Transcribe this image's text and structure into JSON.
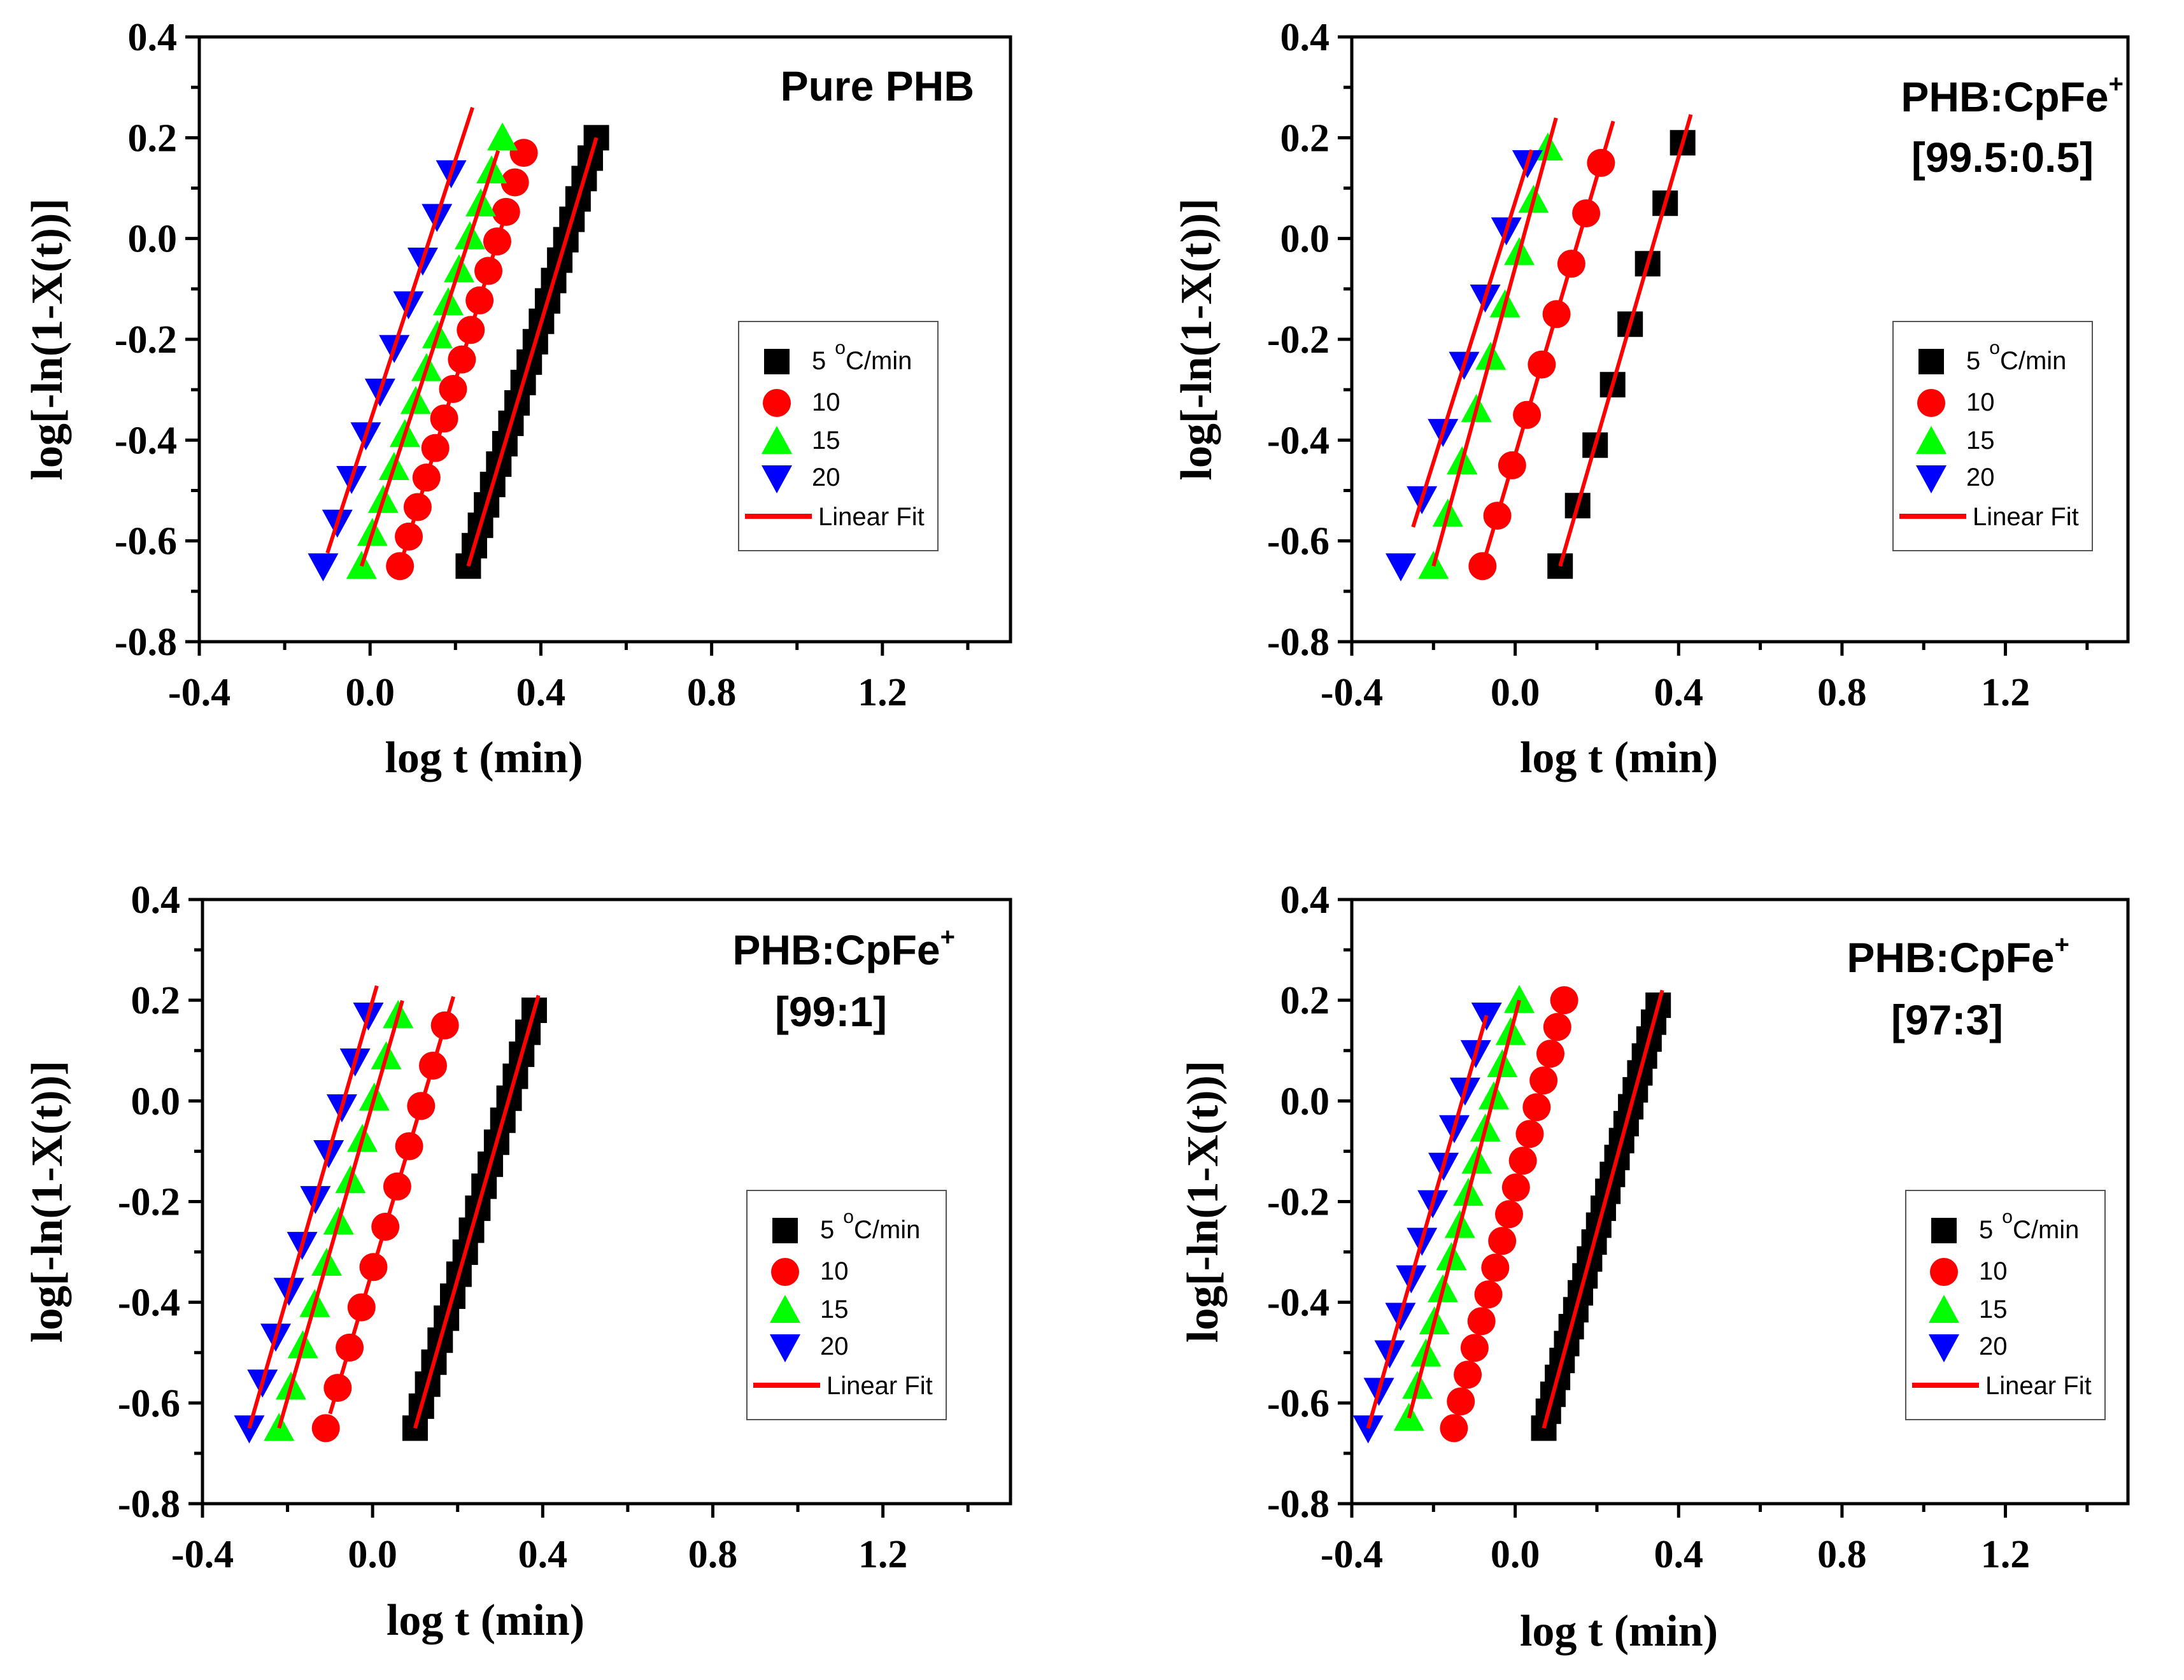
{
  "colors": {
    "black": "#000000",
    "red": "#ff0000",
    "green": "#00ff00",
    "blue": "#0000ff",
    "fit": "#ff0000"
  },
  "chart_data": [
    {
      "type": "scatter",
      "title": "Pure PHB",
      "title_line2": "",
      "xlabel": "log t (min)",
      "ylabel": "log[-ln(1-X(t))]",
      "xlim": [
        -0.4,
        1.5
      ],
      "ylim": [
        -0.8,
        0.4
      ],
      "xticks": [
        "-0.4",
        "0.0",
        "0.4",
        "0.8",
        "1.2"
      ],
      "yticks": [
        "-0.8",
        "-0.6",
        "-0.4",
        "-0.2",
        "0.0",
        "0.2",
        "0.4"
      ],
      "legend": {
        "superscript": "o",
        "labels": [
          "5",
          "10",
          "15",
          "20"
        ],
        "unit_suffix": "C/min",
        "fit_label": "Linear Fit"
      },
      "series": [
        {
          "name": "5 oC/min",
          "marker": "square",
          "color": "black",
          "x0": 0.23,
          "x1": 0.53,
          "y0": -0.65,
          "y1": 0.2,
          "n": 22,
          "fit": [
            0.23,
            0.53
          ]
        },
        {
          "name": "10",
          "marker": "circle",
          "color": "red",
          "x0": 0.07,
          "x1": 0.36,
          "y0": -0.65,
          "y1": 0.17,
          "n": 15,
          "fit": [
            0.07,
            0.32
          ]
        },
        {
          "name": "15",
          "marker": "triangle",
          "color": "green",
          "x0": -0.02,
          "x1": 0.31,
          "y0": -0.65,
          "y1": 0.2,
          "n": 14,
          "fit": [
            -0.02,
            0.3
          ]
        },
        {
          "name": "20",
          "marker": "down-triangle",
          "color": "blue",
          "x0": -0.11,
          "x1": 0.19,
          "y0": -0.65,
          "y1": 0.13,
          "n": 10,
          "fit": [
            -0.1,
            0.24
          ]
        }
      ]
    },
    {
      "type": "scatter",
      "title": "PHB:CpFe",
      "title_sup": "+",
      "title_line2": "[99.5:0.5]",
      "xlabel": "log t (min)",
      "ylabel": "log[-ln(1-X(t))]",
      "xlim": [
        -0.4,
        1.5
      ],
      "ylim": [
        -0.8,
        0.4
      ],
      "xticks": [
        "-0.4",
        "0.0",
        "0.4",
        "0.8",
        "1.2"
      ],
      "yticks": [
        "-0.8",
        "-0.6",
        "-0.4",
        "-0.2",
        "0.0",
        "0.2",
        "0.4"
      ],
      "legend": {
        "superscript": "o",
        "labels": [
          "5",
          "10",
          "15",
          "20"
        ],
        "unit_suffix": "C/min",
        "fit_label": "Linear Fit"
      },
      "series": [
        {
          "name": "5 oC/min",
          "marker": "square",
          "color": "black",
          "x0": 0.11,
          "x1": 0.41,
          "y0": -0.65,
          "y1": 0.19,
          "n": 8,
          "fit": [
            0.11,
            0.43
          ]
        },
        {
          "name": "10",
          "marker": "circle",
          "color": "red",
          "x0": -0.08,
          "x1": 0.21,
          "y0": -0.65,
          "y1": 0.15,
          "n": 9,
          "fit": [
            -0.08,
            0.24
          ]
        },
        {
          "name": "15",
          "marker": "triangle",
          "color": "green",
          "x0": -0.2,
          "x1": 0.08,
          "y0": -0.65,
          "y1": 0.18,
          "n": 9,
          "fit": [
            -0.2,
            0.1
          ]
        },
        {
          "name": "20",
          "marker": "down-triangle",
          "color": "blue",
          "x0": -0.28,
          "x1": 0.03,
          "y0": -0.65,
          "y1": 0.15,
          "n": 7,
          "fit": [
            -0.25,
            0.04
          ]
        }
      ]
    },
    {
      "type": "scatter",
      "title": "PHB:CpFe",
      "title_sup": "+",
      "title_line2": "[99:1]",
      "xlabel": "log t (min)",
      "ylabel": "log[-ln(1-X(t))]",
      "xlim": [
        -0.4,
        1.5
      ],
      "ylim": [
        -0.8,
        0.4
      ],
      "xticks": [
        "-0.4",
        "0.0",
        "0.4",
        "0.8",
        "1.2"
      ],
      "yticks": [
        "-0.8",
        "-0.6",
        "-0.4",
        "-0.2",
        "0.0",
        "0.2",
        "0.4"
      ],
      "legend": {
        "superscript": "o",
        "labels": [
          "5",
          "10",
          "15",
          "20"
        ],
        "unit_suffix": "C/min",
        "fit_label": "Linear Fit"
      },
      "series": [
        {
          "name": "5 oC/min",
          "marker": "square",
          "color": "black",
          "x0": 0.1,
          "x1": 0.38,
          "y0": -0.65,
          "y1": 0.18,
          "n": 20,
          "fit": [
            0.1,
            0.39
          ]
        },
        {
          "name": "10",
          "marker": "circle",
          "color": "red",
          "x0": -0.11,
          "x1": 0.17,
          "y0": -0.65,
          "y1": 0.15,
          "n": 11,
          "fit": [
            -0.1,
            0.19
          ]
        },
        {
          "name": "15",
          "marker": "triangle",
          "color": "green",
          "x0": -0.22,
          "x1": 0.06,
          "y0": -0.65,
          "y1": 0.17,
          "n": 11,
          "fit": [
            -0.22,
            0.07
          ]
        },
        {
          "name": "20",
          "marker": "down-triangle",
          "color": "blue",
          "x0": -0.29,
          "x1": -0.01,
          "y0": -0.65,
          "y1": 0.17,
          "n": 10,
          "fit": [
            -0.29,
            0.01
          ]
        }
      ]
    },
    {
      "type": "scatter",
      "title": "PHB:CpFe",
      "title_sup": "+",
      "title_line2": "[97:3]",
      "xlabel": "log t (min)",
      "ylabel": "log[-ln(1-X(t))]",
      "xlim": [
        -0.4,
        1.5
      ],
      "ylim": [
        -0.8,
        0.4
      ],
      "xticks": [
        "-0.4",
        "0.0",
        "0.4",
        "0.8",
        "1.2"
      ],
      "yticks": [
        "-0.8",
        "-0.6",
        "-0.4",
        "-0.2",
        "0.0",
        "0.2",
        "0.4"
      ],
      "legend": {
        "superscript": "o",
        "labels": [
          "5",
          "10",
          "15",
          "20"
        ],
        "unit_suffix": "C/min",
        "fit_label": "Linear Fit"
      },
      "series": [
        {
          "name": "5 oC/min",
          "marker": "square",
          "color": "black",
          "x0": 0.07,
          "x1": 0.35,
          "y0": -0.65,
          "y1": 0.19,
          "n": 26,
          "fit": [
            0.07,
            0.36
          ]
        },
        {
          "name": "10",
          "marker": "circle",
          "color": "red",
          "x0": -0.15,
          "x1": 0.12,
          "y0": -0.65,
          "y1": 0.2,
          "n": 17,
          "fit": [
            -0.15,
            0.12
          ]
        },
        {
          "name": "15",
          "marker": "triangle",
          "color": "green",
          "x0": -0.26,
          "x1": 0.01,
          "y0": -0.63,
          "y1": 0.2,
          "n": 14,
          "fit": [
            -0.26,
            0.01
          ]
        },
        {
          "name": "20",
          "marker": "down-triangle",
          "color": "blue",
          "x0": -0.36,
          "x1": -0.07,
          "y0": -0.65,
          "y1": 0.17,
          "n": 12,
          "fit": [
            -0.36,
            -0.07
          ]
        }
      ]
    }
  ]
}
